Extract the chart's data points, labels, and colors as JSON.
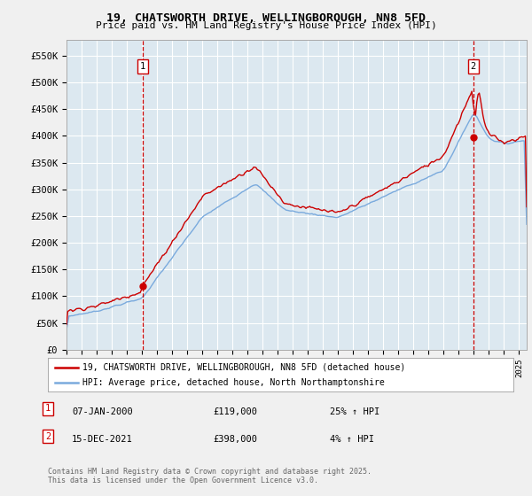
{
  "title_line1": "19, CHATSWORTH DRIVE, WELLINGBOROUGH, NN8 5FD",
  "title_line2": "Price paid vs. HM Land Registry's House Price Index (HPI)",
  "ylim": [
    0,
    580000
  ],
  "yticks": [
    0,
    50000,
    100000,
    150000,
    200000,
    250000,
    300000,
    350000,
    400000,
    450000,
    500000,
    550000
  ],
  "ytick_labels": [
    "£0",
    "£50K",
    "£100K",
    "£150K",
    "£200K",
    "£250K",
    "£300K",
    "£350K",
    "£400K",
    "£450K",
    "£500K",
    "£550K"
  ],
  "x_start_year": 1995,
  "x_end_year": 2025,
  "sale1_date": 2000.04,
  "sale1_price": 119000,
  "sale1_label": "1",
  "sale2_date": 2021.96,
  "sale2_price": 398000,
  "sale2_label": "2",
  "red_color": "#cc0000",
  "blue_color": "#7aaadd",
  "fig_bg": "#f0f0f0",
  "plot_bg": "#dce8f0",
  "grid_color": "#ffffff",
  "legend_line1": "19, CHATSWORTH DRIVE, WELLINGBOROUGH, NN8 5FD (detached house)",
  "legend_line2": "HPI: Average price, detached house, North Northamptonshire",
  "footer": "Contains HM Land Registry data © Crown copyright and database right 2025.\nThis data is licensed under the Open Government Licence v3.0."
}
